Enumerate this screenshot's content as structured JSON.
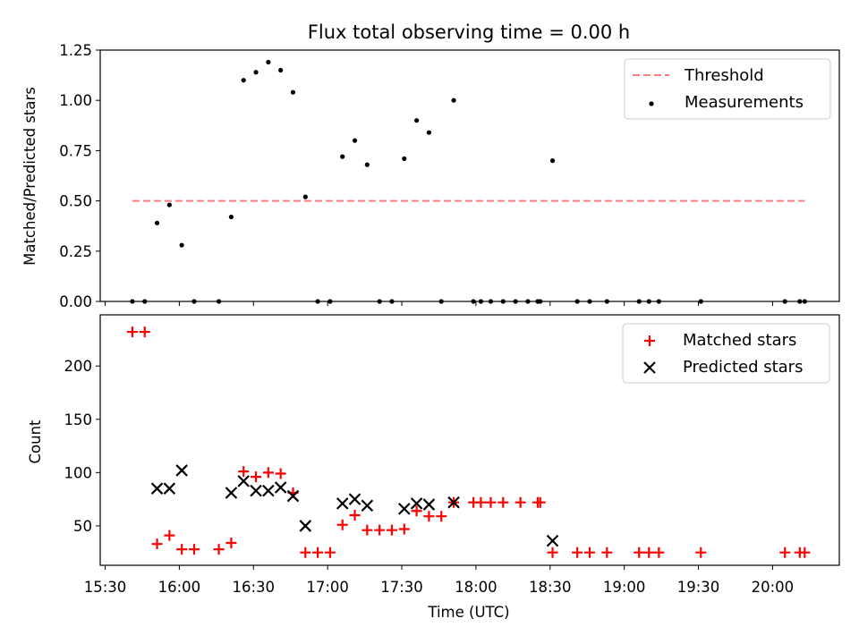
{
  "chart_data": [
    {
      "type": "scatter",
      "title": "Flux total observing time = 0.00 h",
      "xlabel": "",
      "ylabel": "Matched/Predicted stars",
      "ylim": [
        0,
        1.25
      ],
      "yticks": [
        "0.00",
        "0.25",
        "0.50",
        "0.75",
        "1.00",
        "1.25"
      ],
      "legend_position": "top-right",
      "threshold": {
        "name": "Threshold",
        "value": 0.5,
        "x_start": "15:41",
        "x_end": "20:13",
        "color": "#ff7f7f"
      },
      "series": [
        {
          "name": "Measurements",
          "color": "#000000",
          "points": [
            [
              "15:41",
              0.0
            ],
            [
              "15:46",
              0.0
            ],
            [
              "15:51",
              0.39
            ],
            [
              "15:56",
              0.48
            ],
            [
              "16:01",
              0.28
            ],
            [
              "16:06",
              0.0
            ],
            [
              "16:16",
              0.0
            ],
            [
              "16:21",
              0.42
            ],
            [
              "16:26",
              1.1
            ],
            [
              "16:31",
              1.14
            ],
            [
              "16:36",
              1.19
            ],
            [
              "16:41",
              1.15
            ],
            [
              "16:46",
              1.04
            ],
            [
              "16:51",
              0.52
            ],
            [
              "16:56",
              0.0
            ],
            [
              "17:01",
              0.0
            ],
            [
              "17:06",
              0.72
            ],
            [
              "17:11",
              0.8
            ],
            [
              "17:16",
              0.68
            ],
            [
              "17:21",
              0.0
            ],
            [
              "17:26",
              0.0
            ],
            [
              "17:31",
              0.71
            ],
            [
              "17:36",
              0.9
            ],
            [
              "17:41",
              0.84
            ],
            [
              "17:46",
              0.0
            ],
            [
              "17:51",
              1.0
            ],
            [
              "17:59",
              0.0
            ],
            [
              "18:02",
              0.0
            ],
            [
              "18:06",
              0.0
            ],
            [
              "18:11",
              0.0
            ],
            [
              "18:16",
              0.0
            ],
            [
              "18:21",
              0.0
            ],
            [
              "18:25",
              0.0
            ],
            [
              "18:26",
              0.0
            ],
            [
              "18:31",
              0.7
            ],
            [
              "18:41",
              0.0
            ],
            [
              "18:46",
              0.0
            ],
            [
              "18:53",
              0.0
            ],
            [
              "19:06",
              0.0
            ],
            [
              "19:10",
              0.0
            ],
            [
              "19:14",
              0.0
            ],
            [
              "19:31",
              0.0
            ],
            [
              "20:05",
              0.0
            ],
            [
              "20:11",
              0.0
            ],
            [
              "20:13",
              0.0
            ]
          ]
        }
      ]
    },
    {
      "type": "scatter",
      "title": "",
      "xlabel": "Time (UTC)",
      "ylabel": "Count",
      "ylim": [
        13,
        248
      ],
      "yticks": [
        "50",
        "100",
        "150",
        "200"
      ],
      "xlim": [
        "15:28",
        "20:27"
      ],
      "xticks": [
        "15:30",
        "16:00",
        "16:30",
        "17:00",
        "17:30",
        "18:00",
        "18:30",
        "19:00",
        "19:30",
        "20:00"
      ],
      "legend_position": "top-right",
      "series": [
        {
          "name": "Matched stars",
          "marker": "plus",
          "color": "#ff0000",
          "points": [
            [
              "15:41",
              232
            ],
            [
              "15:46",
              232
            ],
            [
              "15:51",
              33
            ],
            [
              "15:56",
              41
            ],
            [
              "16:01",
              28
            ],
            [
              "16:06",
              28
            ],
            [
              "16:16",
              28
            ],
            [
              "16:21",
              34
            ],
            [
              "16:26",
              101
            ],
            [
              "16:31",
              96
            ],
            [
              "16:36",
              100
            ],
            [
              "16:41",
              99
            ],
            [
              "16:46",
              81
            ],
            [
              "16:51",
              25
            ],
            [
              "16:56",
              25
            ],
            [
              "17:01",
              25
            ],
            [
              "17:06",
              51
            ],
            [
              "17:11",
              60
            ],
            [
              "17:16",
              46
            ],
            [
              "17:21",
              46
            ],
            [
              "17:26",
              46
            ],
            [
              "17:31",
              47
            ],
            [
              "17:36",
              64
            ],
            [
              "17:41",
              59
            ],
            [
              "17:46",
              59
            ],
            [
              "17:51",
              72
            ],
            [
              "17:59",
              72
            ],
            [
              "18:02",
              72
            ],
            [
              "18:06",
              72
            ],
            [
              "18:11",
              72
            ],
            [
              "18:18",
              72
            ],
            [
              "18:25",
              72
            ],
            [
              "18:26",
              72
            ],
            [
              "18:31",
              25
            ],
            [
              "18:41",
              25
            ],
            [
              "18:46",
              25
            ],
            [
              "18:53",
              25
            ],
            [
              "19:06",
              25
            ],
            [
              "19:10",
              25
            ],
            [
              "19:14",
              25
            ],
            [
              "19:31",
              25
            ],
            [
              "20:05",
              25
            ],
            [
              "20:11",
              25
            ],
            [
              "20:13",
              25
            ]
          ]
        },
        {
          "name": "Predicted stars",
          "marker": "x",
          "color": "#000000",
          "points": [
            [
              "15:51",
              85
            ],
            [
              "15:56",
              85
            ],
            [
              "16:01",
              102
            ],
            [
              "16:21",
              81
            ],
            [
              "16:26",
              92
            ],
            [
              "16:31",
              83
            ],
            [
              "16:36",
              83
            ],
            [
              "16:41",
              86
            ],
            [
              "16:46",
              78
            ],
            [
              "16:51",
              50
            ],
            [
              "17:06",
              71
            ],
            [
              "17:11",
              75
            ],
            [
              "17:16",
              69
            ],
            [
              "17:31",
              66
            ],
            [
              "17:36",
              71
            ],
            [
              "17:41",
              70
            ],
            [
              "17:51",
              72
            ],
            [
              "18:31",
              36
            ]
          ]
        }
      ]
    }
  ]
}
